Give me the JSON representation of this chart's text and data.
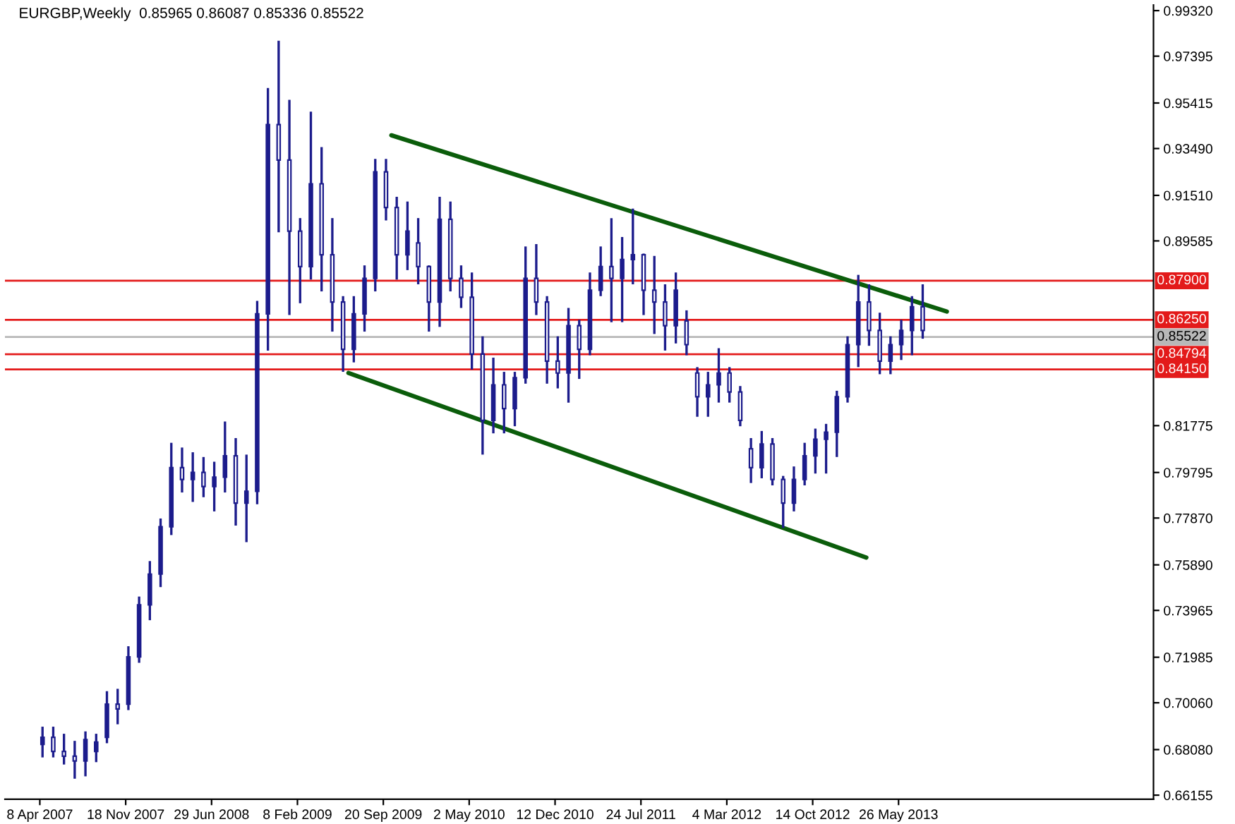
{
  "chart_data": {
    "type": "candlestick",
    "title": "EURGBP,Weekly  0.85965 0.86087 0.85336 0.85522",
    "x": [
      "2007-04-15",
      "2007-05-13",
      "2007-06-10",
      "2007-07-08",
      "2007-08-05",
      "2007-09-02",
      "2007-09-30",
      "2007-10-28",
      "2007-11-25",
      "2007-12-23",
      "2008-01-20",
      "2008-02-17",
      "2008-03-16",
      "2008-04-13",
      "2008-05-11",
      "2008-06-08",
      "2008-07-06",
      "2008-08-03",
      "2008-08-31",
      "2008-09-28",
      "2008-10-26",
      "2008-11-23",
      "2008-12-21",
      "2009-01-18",
      "2009-02-15",
      "2009-03-15",
      "2009-04-12",
      "2009-05-10",
      "2009-06-07",
      "2009-07-05",
      "2009-08-02",
      "2009-08-30",
      "2009-09-27",
      "2009-10-25",
      "2009-11-22",
      "2009-12-20",
      "2010-01-17",
      "2010-02-14",
      "2010-03-14",
      "2010-04-11",
      "2010-05-09",
      "2010-06-06",
      "2010-07-04",
      "2010-08-01",
      "2010-08-29",
      "2010-09-26",
      "2010-10-24",
      "2010-11-21",
      "2010-12-19",
      "2011-01-16",
      "2011-02-13",
      "2011-03-13",
      "2011-04-10",
      "2011-05-08",
      "2011-06-05",
      "2011-07-03",
      "2011-07-31",
      "2011-08-28",
      "2011-09-25",
      "2011-10-23",
      "2011-11-20",
      "2011-12-18",
      "2012-01-15",
      "2012-02-12",
      "2012-03-11",
      "2012-04-08",
      "2012-05-06",
      "2012-06-03",
      "2012-07-01",
      "2012-07-29",
      "2012-08-26",
      "2012-09-23",
      "2012-10-21",
      "2012-11-18",
      "2012-12-16",
      "2013-01-13",
      "2013-02-10",
      "2013-03-10",
      "2013-04-07",
      "2013-05-05",
      "2013-06-02",
      "2013-06-30",
      "2013-07-28"
    ],
    "ohlc": [
      [
        0.683,
        0.69,
        0.678,
        0.686
      ],
      [
        0.686,
        0.69,
        0.678,
        0.68
      ],
      [
        0.68,
        0.687,
        0.675,
        0.678
      ],
      [
        0.678,
        0.684,
        0.669,
        0.676
      ],
      [
        0.676,
        0.688,
        0.67,
        0.685
      ],
      [
        0.68,
        0.687,
        0.676,
        0.684
      ],
      [
        0.686,
        0.705,
        0.684,
        0.7
      ],
      [
        0.7,
        0.706,
        0.692,
        0.698
      ],
      [
        0.7,
        0.724,
        0.698,
        0.72
      ],
      [
        0.72,
        0.745,
        0.718,
        0.742
      ],
      [
        0.742,
        0.76,
        0.736,
        0.755
      ],
      [
        0.755,
        0.778,
        0.75,
        0.775
      ],
      [
        0.775,
        0.81,
        0.772,
        0.8
      ],
      [
        0.8,
        0.808,
        0.79,
        0.795
      ],
      [
        0.795,
        0.806,
        0.786,
        0.798
      ],
      [
        0.798,
        0.804,
        0.788,
        0.792
      ],
      [
        0.792,
        0.802,
        0.782,
        0.796
      ],
      [
        0.796,
        0.819,
        0.79,
        0.805
      ],
      [
        0.805,
        0.812,
        0.776,
        0.785
      ],
      [
        0.785,
        0.805,
        0.769,
        0.79
      ],
      [
        0.79,
        0.87,
        0.785,
        0.865
      ],
      [
        0.865,
        0.96,
        0.85,
        0.945
      ],
      [
        0.945,
        0.98,
        0.9,
        0.93
      ],
      [
        0.93,
        0.955,
        0.865,
        0.9
      ],
      [
        0.9,
        0.905,
        0.87,
        0.885
      ],
      [
        0.885,
        0.95,
        0.88,
        0.92
      ],
      [
        0.92,
        0.935,
        0.875,
        0.89
      ],
      [
        0.89,
        0.905,
        0.858,
        0.87
      ],
      [
        0.87,
        0.872,
        0.841,
        0.85
      ],
      [
        0.85,
        0.872,
        0.845,
        0.865
      ],
      [
        0.865,
        0.885,
        0.858,
        0.88
      ],
      [
        0.88,
        0.93,
        0.875,
        0.925
      ],
      [
        0.925,
        0.93,
        0.905,
        0.91
      ],
      [
        0.91,
        0.914,
        0.88,
        0.89
      ],
      [
        0.89,
        0.912,
        0.884,
        0.9
      ],
      [
        0.895,
        0.905,
        0.878,
        0.885
      ],
      [
        0.885,
        0.885,
        0.858,
        0.87
      ],
      [
        0.87,
        0.914,
        0.86,
        0.905
      ],
      [
        0.905,
        0.912,
        0.875,
        0.88
      ],
      [
        0.88,
        0.885,
        0.868,
        0.872
      ],
      [
        0.872,
        0.882,
        0.842,
        0.848
      ],
      [
        0.848,
        0.855,
        0.806,
        0.82
      ],
      [
        0.82,
        0.846,
        0.815,
        0.835
      ],
      [
        0.835,
        0.84,
        0.815,
        0.825
      ],
      [
        0.825,
        0.84,
        0.818,
        0.838
      ],
      [
        0.838,
        0.893,
        0.836,
        0.88
      ],
      [
        0.88,
        0.894,
        0.865,
        0.87
      ],
      [
        0.87,
        0.872,
        0.836,
        0.845
      ],
      [
        0.845,
        0.855,
        0.834,
        0.84
      ],
      [
        0.84,
        0.867,
        0.828,
        0.86
      ],
      [
        0.86,
        0.862,
        0.838,
        0.85
      ],
      [
        0.85,
        0.882,
        0.848,
        0.875
      ],
      [
        0.875,
        0.893,
        0.873,
        0.885
      ],
      [
        0.885,
        0.905,
        0.862,
        0.88
      ],
      [
        0.88,
        0.897,
        0.862,
        0.888
      ],
      [
        0.888,
        0.909,
        0.878,
        0.89
      ],
      [
        0.89,
        0.89,
        0.865,
        0.875
      ],
      [
        0.875,
        0.889,
        0.857,
        0.87
      ],
      [
        0.87,
        0.877,
        0.85,
        0.86
      ],
      [
        0.86,
        0.882,
        0.853,
        0.875
      ],
      [
        0.862,
        0.866,
        0.848,
        0.852
      ],
      [
        0.84,
        0.842,
        0.822,
        0.83
      ],
      [
        0.83,
        0.84,
        0.822,
        0.835
      ],
      [
        0.835,
        0.85,
        0.828,
        0.84
      ],
      [
        0.84,
        0.842,
        0.828,
        0.832
      ],
      [
        0.832,
        0.834,
        0.818,
        0.82
      ],
      [
        0.808,
        0.812,
        0.794,
        0.8
      ],
      [
        0.8,
        0.815,
        0.796,
        0.81
      ],
      [
        0.81,
        0.812,
        0.793,
        0.795
      ],
      [
        0.795,
        0.796,
        0.775,
        0.785
      ],
      [
        0.785,
        0.8,
        0.782,
        0.795
      ],
      [
        0.795,
        0.81,
        0.793,
        0.805
      ],
      [
        0.805,
        0.816,
        0.798,
        0.812
      ],
      [
        0.812,
        0.818,
        0.798,
        0.815
      ],
      [
        0.815,
        0.832,
        0.805,
        0.83
      ],
      [
        0.83,
        0.855,
        0.828,
        0.852
      ],
      [
        0.852,
        0.881,
        0.843,
        0.87
      ],
      [
        0.87,
        0.877,
        0.852,
        0.858
      ],
      [
        0.858,
        0.865,
        0.84,
        0.845
      ],
      [
        0.845,
        0.855,
        0.84,
        0.852
      ],
      [
        0.852,
        0.862,
        0.846,
        0.858
      ],
      [
        0.858,
        0.872,
        0.848,
        0.868
      ],
      [
        0.868,
        0.877,
        0.855,
        0.858
      ]
    ],
    "color": "#1c1c8c",
    "series": [
      {
        "type": "line",
        "color": "#0b5d0b",
        "x": [
          "2009-10-11",
          "2013-09-29"
        ],
        "values": [
          0.9405,
          0.866
        ]
      },
      {
        "type": "line",
        "color": "#0b5d0b",
        "x": [
          "2009-06-21",
          "2013-03-03"
        ],
        "values": [
          0.84,
          0.762
        ]
      }
    ],
    "ref_lines": [
      {
        "axis": "y",
        "value": 0.879,
        "label": "0.87900",
        "color": "#e31a1a"
      },
      {
        "axis": "y",
        "value": 0.8625,
        "label": "0.86250",
        "color": "#e31a1a"
      },
      {
        "axis": "y",
        "value": 0.85522,
        "label": "0.85522",
        "color": "#b8b8b8"
      },
      {
        "axis": "y",
        "value": 0.84794,
        "label": "0.84794",
        "color": "#e31a1a"
      },
      {
        "axis": "y",
        "value": 0.8415,
        "label": "0.84150",
        "color": "#e31a1a"
      }
    ],
    "xlim": [
      "2007-01-07",
      "2015-03-22"
    ],
    "xticks": [
      {
        "value": "2007-04-08",
        "label": "8 Apr 2007"
      },
      {
        "value": "2007-11-18",
        "label": "18 Nov 2007"
      },
      {
        "value": "2008-06-29",
        "label": "29 Jun 2008"
      },
      {
        "value": "2009-02-08",
        "label": "8 Feb 2009"
      },
      {
        "value": "2009-09-20",
        "label": "20 Sep 2009"
      },
      {
        "value": "2010-05-02",
        "label": "2 May 2010"
      },
      {
        "value": "2010-12-12",
        "label": "12 Dec 2010"
      },
      {
        "value": "2011-07-24",
        "label": "24 Jul 2011"
      },
      {
        "value": "2012-03-04",
        "label": "4 Mar 2012"
      },
      {
        "value": "2012-10-14",
        "label": "14 Oct 2012"
      },
      {
        "value": "2013-05-26",
        "label": "26 May 2013"
      }
    ],
    "ylim": [
      0.6598,
      0.9956
    ],
    "yticks": [
      {
        "value": 0.9932,
        "label": "0.99320"
      },
      {
        "value": 0.97395,
        "label": "0.97395"
      },
      {
        "value": 0.95415,
        "label": "0.95415"
      },
      {
        "value": 0.9349,
        "label": "0.93490"
      },
      {
        "value": 0.9151,
        "label": "0.91510"
      },
      {
        "value": 0.89585,
        "label": "0.89585"
      },
      {
        "value": 0.81775,
        "label": "0.81775"
      },
      {
        "value": 0.79795,
        "label": "0.79795"
      },
      {
        "value": 0.7787,
        "label": "0.77870"
      },
      {
        "value": 0.7589,
        "label": "0.75890"
      },
      {
        "value": 0.73965,
        "label": "0.73965"
      },
      {
        "value": 0.71985,
        "label": "0.71985"
      },
      {
        "value": 0.7006,
        "label": "0.70060"
      },
      {
        "value": 0.6808,
        "label": "0.68080"
      },
      {
        "value": 0.66155,
        "label": "0.66155"
      }
    ],
    "grid": false,
    "legend": false
  }
}
